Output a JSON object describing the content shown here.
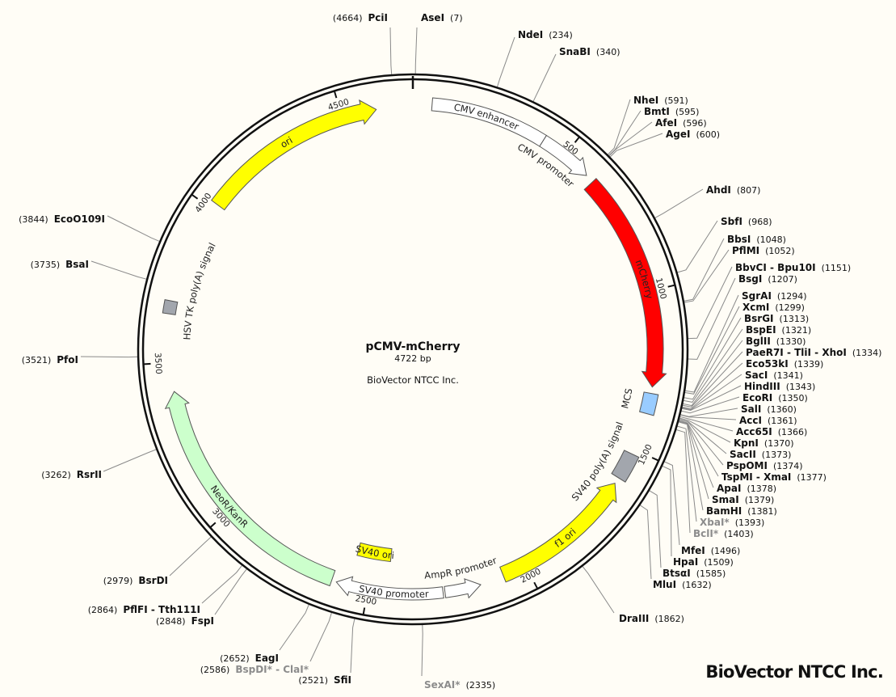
{
  "plasmid": {
    "name": "pCMV-mCherry",
    "size_label": "4722 bp",
    "length": 4722,
    "supplier": "BioVector NTCC Inc."
  },
  "watermark": "BioVector NTCC Inc.",
  "ticks": [
    "500",
    "1000",
    "1500",
    "2000",
    "2500",
    "3000",
    "3500",
    "4000",
    "4500"
  ],
  "features": [
    {
      "label": "CMV enhancer",
      "start": 59,
      "end": 420,
      "dir": "none",
      "color": "#ffffff",
      "text_color": "#222222"
    },
    {
      "label": "CMV promoter",
      "start": 420,
      "end": 590,
      "dir": "cw",
      "color": "#ffffff",
      "text_color": "#222222"
    },
    {
      "label": "mCherry",
      "start": 617,
      "end": 1298,
      "dir": "cw",
      "color": "#ff0000",
      "text_color": "#ffffff"
    },
    {
      "label": "MCS",
      "start": 1318,
      "end": 1382,
      "dir": "none",
      "color": "#99ccff",
      "text_color": "#222222"
    },
    {
      "label": "SV40 poly(A) signal",
      "start": 1515,
      "end": 1600,
      "dir": "none",
      "color": "#a2a6ad",
      "text_color": "#222222"
    },
    {
      "label": "f1 ori",
      "start": 1620,
      "end": 2075,
      "dir": "ccw",
      "color": "#ffff00",
      "text_color": "#222222"
    },
    {
      "label": "AmpR promoter",
      "start": 2150,
      "end": 2262,
      "dir": "ccw",
      "color": "#ffffff",
      "text_color": "#222222"
    },
    {
      "label": "SV40 promoter",
      "start": 2268,
      "end": 2600,
      "dir": "cw",
      "color": "#ffffff",
      "text_color": "#222222"
    },
    {
      "label": "SV40 ori",
      "start": 2440,
      "end": 2560,
      "dir": "none",
      "color": "#ffff00",
      "text_color": "#222222"
    },
    {
      "label": "NeoR/KanR",
      "start": 2615,
      "end": 3410,
      "dir": "cw",
      "color": "#ccffcc",
      "text_color": "#222222"
    },
    {
      "label": "HSV TK poly(A) signal",
      "start": 3650,
      "end": 3690,
      "dir": "none",
      "color": "#a2a6ad",
      "text_color": "#222222"
    },
    {
      "label": "ori",
      "start": 4020,
      "end": 4608,
      "dir": "cw",
      "color": "#ffff00",
      "text_color": "#222222"
    }
  ],
  "enzymes": [
    {
      "name": "PciI",
      "pos": 4664
    },
    {
      "name": "AseI",
      "pos": 7
    },
    {
      "name": "NdeI",
      "pos": 234
    },
    {
      "name": "SnaBI",
      "pos": 340
    },
    {
      "name": "NheI",
      "pos": 591
    },
    {
      "name": "BmtI",
      "pos": 595
    },
    {
      "name": "AfeI",
      "pos": 596
    },
    {
      "name": "AgeI",
      "pos": 600
    },
    {
      "name": "AhdI",
      "pos": 807
    },
    {
      "name": "SbfI",
      "pos": 968
    },
    {
      "name": "BbsI",
      "pos": 1048
    },
    {
      "name": "PflMI",
      "pos": 1052
    },
    {
      "name": "BbvCI - Bpu10I",
      "pos": 1151
    },
    {
      "name": "BsgI",
      "pos": 1207
    },
    {
      "name": "SgrAI",
      "pos": 1294
    },
    {
      "name": "XcmI",
      "pos": 1299
    },
    {
      "name": "BsrGI",
      "pos": 1313
    },
    {
      "name": "BspEI",
      "pos": 1321
    },
    {
      "name": "BglII",
      "pos": 1330
    },
    {
      "name": "PaeR7I - TliI - XhoI",
      "pos": 1334
    },
    {
      "name": "Eco53kI",
      "pos": 1339
    },
    {
      "name": "SacI",
      "pos": 1341
    },
    {
      "name": "HindIII",
      "pos": 1343
    },
    {
      "name": "EcoRI",
      "pos": 1350
    },
    {
      "name": "SalI",
      "pos": 1360
    },
    {
      "name": "AccI",
      "pos": 1361
    },
    {
      "name": "Acc65I",
      "pos": 1366
    },
    {
      "name": "KpnI",
      "pos": 1370
    },
    {
      "name": "SacII",
      "pos": 1373
    },
    {
      "name": "PspOMI",
      "pos": 1374
    },
    {
      "name": "TspMI - XmaI",
      "pos": 1377
    },
    {
      "name": "ApaI",
      "pos": 1378
    },
    {
      "name": "SmaI",
      "pos": 1379
    },
    {
      "name": "BamHI",
      "pos": 1381
    },
    {
      "name": "XbaI*",
      "pos": 1393,
      "dim": true
    },
    {
      "name": "BclI*",
      "pos": 1403,
      "dim": true
    },
    {
      "name": "MfeI",
      "pos": 1496
    },
    {
      "name": "HpaI",
      "pos": 1509
    },
    {
      "name": "BtsαI",
      "pos": 1585
    },
    {
      "name": "MluI",
      "pos": 1632
    },
    {
      "name": "DraIII",
      "pos": 1862
    },
    {
      "name": "SexAI*",
      "pos": 2335,
      "dim": true
    },
    {
      "name": "SfiI",
      "pos": 2521
    },
    {
      "name": "BspDI* - ClaI*",
      "pos": 2586,
      "dim": true
    },
    {
      "name": "EagI",
      "pos": 2652
    },
    {
      "name": "FspI",
      "pos": 2848
    },
    {
      "name": "PflFI - Tth111I",
      "pos": 2864
    },
    {
      "name": "BsrDI",
      "pos": 2979
    },
    {
      "name": "RsrII",
      "pos": 3262
    },
    {
      "name": "PfoI",
      "pos": 3521
    },
    {
      "name": "BsaI",
      "pos": 3735
    },
    {
      "name": "EcoO109I",
      "pos": 3844
    }
  ]
}
